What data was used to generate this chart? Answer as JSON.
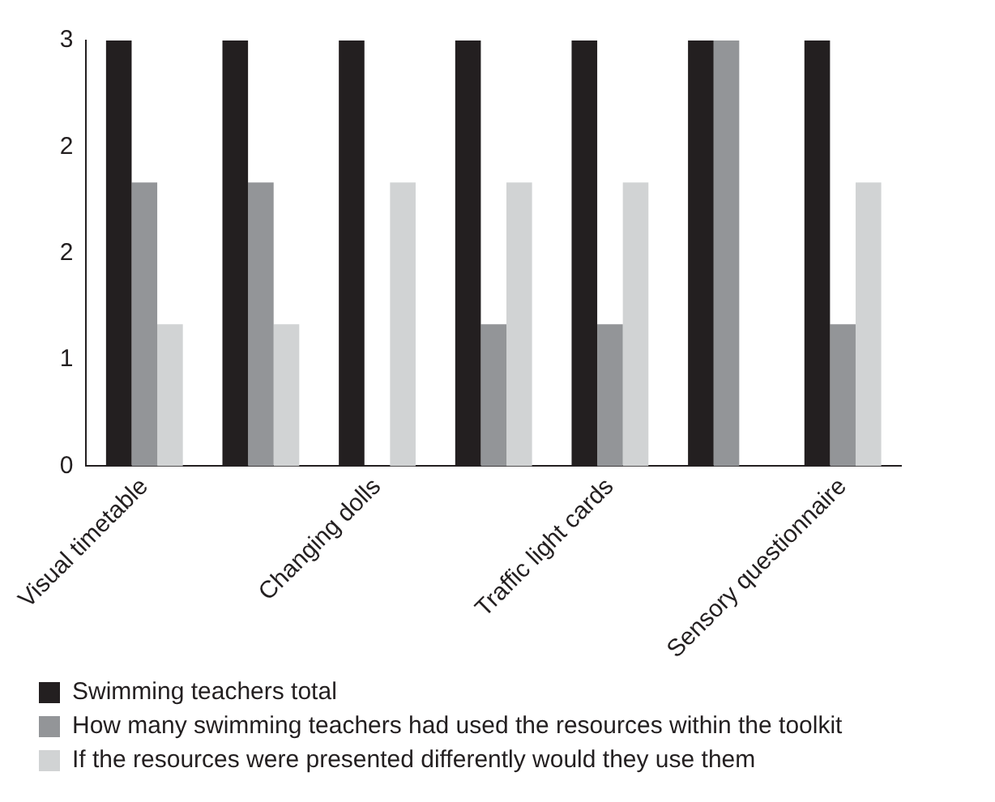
{
  "chart_data": {
    "type": "bar",
    "categories": [
      "Visual timetable",
      null,
      "Changing dolls",
      null,
      "Traffic light cards",
      null,
      "Sensory questionnaire"
    ],
    "series": [
      {
        "name": "Swimming teachers total",
        "color": "#231f20",
        "values": [
          3,
          3,
          3,
          3,
          3,
          3,
          3
        ]
      },
      {
        "name": "How many swimming teachers had used the resources within the toolkit",
        "color": "#939598",
        "values": [
          2,
          2,
          0,
          1,
          1,
          3,
          1
        ]
      },
      {
        "name": "If the resources were presented differently would they use them",
        "color": "#d1d3d4",
        "values": [
          1,
          1,
          2,
          2,
          2,
          0,
          2
        ]
      }
    ],
    "ylim": [
      0,
      3
    ],
    "yticks": [
      0,
      {
        "value": 0.75,
        "label": "1"
      },
      {
        "value": 1.5,
        "label": "2"
      },
      {
        "value": 2.25,
        "label": "2"
      },
      3
    ],
    "grid": false,
    "legend": "bottom"
  }
}
